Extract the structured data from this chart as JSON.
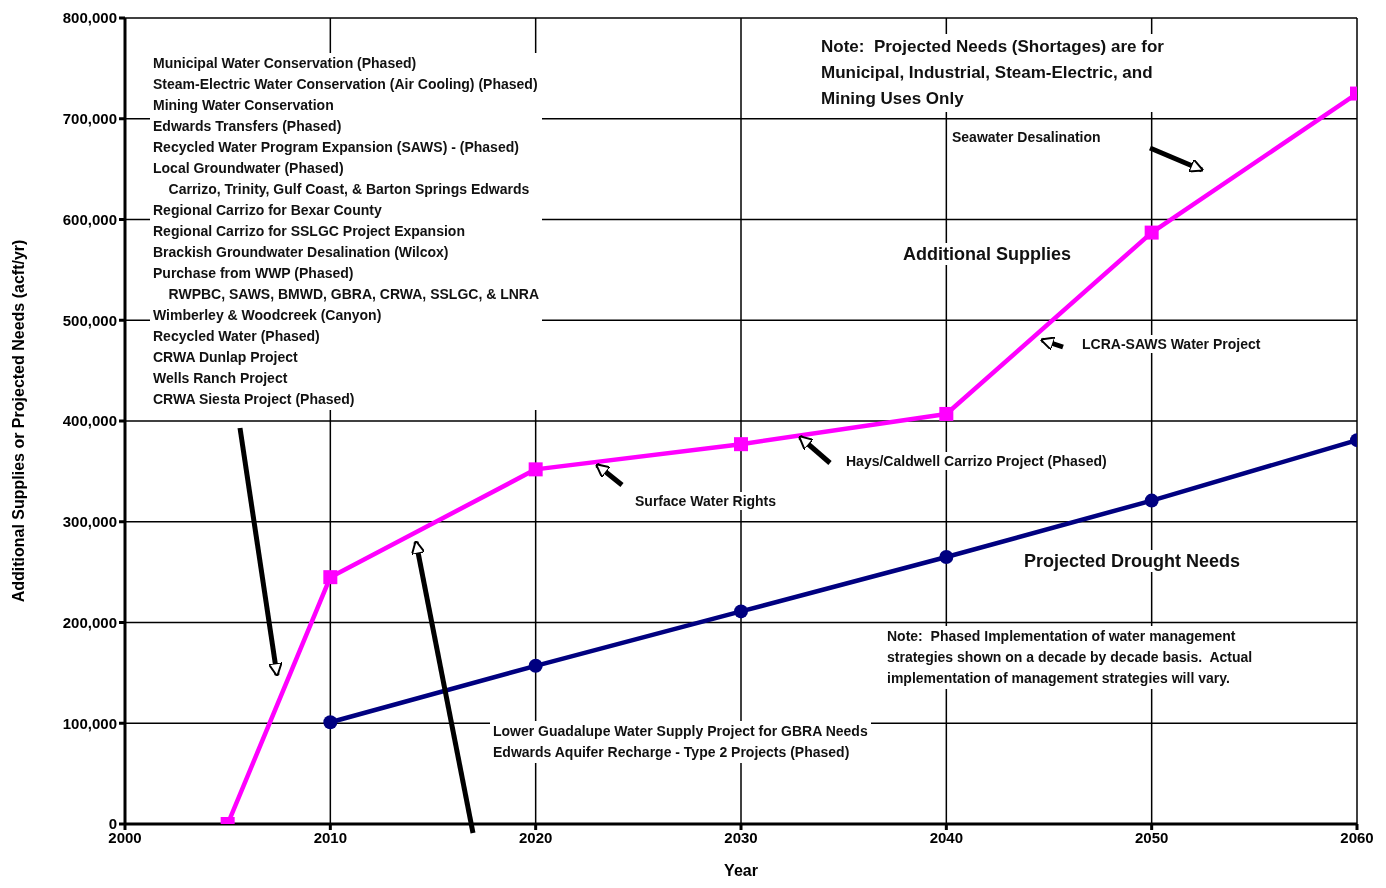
{
  "chart_data": {
    "type": "line",
    "xlabel": "Year",
    "ylabel": "Additional Supplies or Projected Needs (acft/yr)",
    "x": [
      2005,
      2010,
      2020,
      2030,
      2040,
      2050,
      2060
    ],
    "series": [
      {
        "color": "#ff00ff",
        "marker": "square",
        "values": [
          0,
          245000,
          352000,
          377000,
          407000,
          587000,
          725000
        ]
      },
      {
        "color": "#000080",
        "marker": "circle",
        "values": [
          null,
          101000,
          157000,
          211000,
          265000,
          321000,
          381000
        ]
      }
    ],
    "xlim": [
      2000,
      2060
    ],
    "xticks": [
      2000,
      2010,
      2020,
      2030,
      2040,
      2050,
      2060
    ],
    "ylim": [
      0,
      800000
    ],
    "yticks": [
      0,
      {
        "value": 100000,
        "label": "100,000"
      },
      {
        "value": 200000,
        "label": "200,000"
      },
      {
        "value": 300000,
        "label": "300,000"
      },
      {
        "value": 400000,
        "label": "400,000"
      },
      {
        "value": 500000,
        "label": "500,000"
      },
      {
        "value": 600000,
        "label": "600,000"
      },
      {
        "value": 700000,
        "label": "700,000"
      },
      {
        "value": 800000,
        "label": "800,000"
      }
    ],
    "grid": true,
    "legend": false,
    "line_style": "solid",
    "annotations": [
      "Note:  Projected Needs (Shortages) are for\nMunicipal, Industrial, Steam-Electric, and\nMining Uses Only",
      "Municipal Water Conservation (Phased)\nSteam-Electric Water Conservation (Air Cooling) (Phased)\nMining Water Conservation\nEdwards Transfers (Phased)\nRecycled Water Program Expansion (SAWS) - (Phased)\nLocal Groundwater (Phased)\n    Carrizo, Trinity, Gulf Coast, & Barton Springs Edwards\nRegional Carrizo for Bexar County\nRegional Carrizo for SSLGC Project Expansion\nBrackish Groundwater Desalination (Wilcox)\nPurchase from WWP (Phased)\n    RWPBC, SAWS, BMWD, GBRA, CRWA, SSLGC, & LNRA\nWimberley & Woodcreek (Canyon)\nRecycled Water (Phased)\nCRWA Dunlap Project\nWells Ranch Project\nCRWA Siesta Project (Phased)",
      "Seawater Desalination",
      "Additional Supplies",
      "LCRA-SAWS Water Project",
      "Hays/Caldwell Carrizo Project (Phased)",
      "Surface Water Rights",
      "Projected Drought Needs",
      "Note:  Phased Implementation of water management\nstrategies shown on a decade by decade basis.  Actual\nimplementation of management strategies will vary.",
      "Lower Guadalupe Water Supply Project for GBRA Needs\nEdwards Aquifer Recharge - Type 2 Projects (Phased)"
    ]
  }
}
